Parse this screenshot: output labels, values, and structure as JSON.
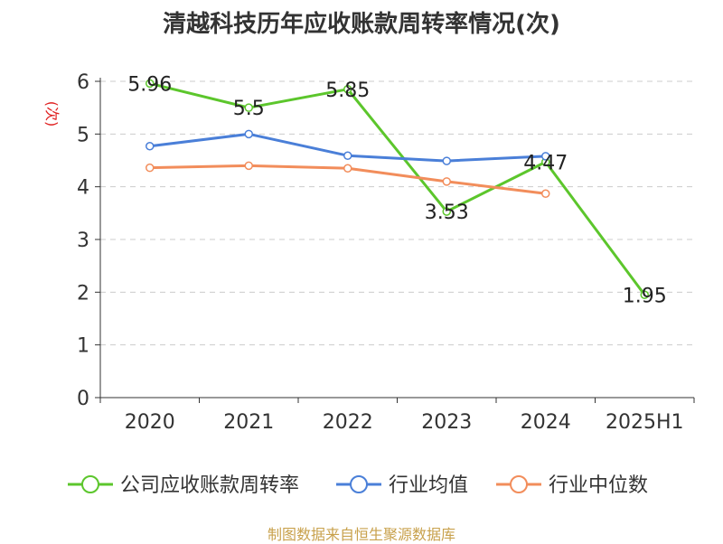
{
  "chart_data": {
    "type": "line",
    "title": "清越科技历年应收账款周转率情况(次)",
    "ylabel": "(次)",
    "xlabel": "",
    "categories": [
      "2020",
      "2021",
      "2022",
      "2023",
      "2024",
      "2025H1"
    ],
    "ylim": [
      0,
      6
    ],
    "yticks": [
      0,
      1,
      2,
      3,
      4,
      5,
      6
    ],
    "grid": true,
    "legend_position": "bottom",
    "series": [
      {
        "name": "公司应收账款周转率",
        "color": "#5cc62c",
        "values": [
          5.96,
          5.5,
          5.85,
          3.53,
          4.47,
          1.95
        ],
        "labels": [
          "5.96",
          "5.5",
          "5.85",
          "3.53",
          "4.47",
          "1.95"
        ]
      },
      {
        "name": "行业均值",
        "color": "#4a7fd8",
        "values": [
          4.77,
          5.0,
          4.59,
          4.49,
          4.58,
          null
        ]
      },
      {
        "name": "行业中位数",
        "color": "#f28d5b",
        "values": [
          4.36,
          4.4,
          4.35,
          4.1,
          3.87,
          null
        ]
      }
    ]
  },
  "ylabel_color": "#e02020",
  "source": "制图数据来自恒生聚源数据库"
}
